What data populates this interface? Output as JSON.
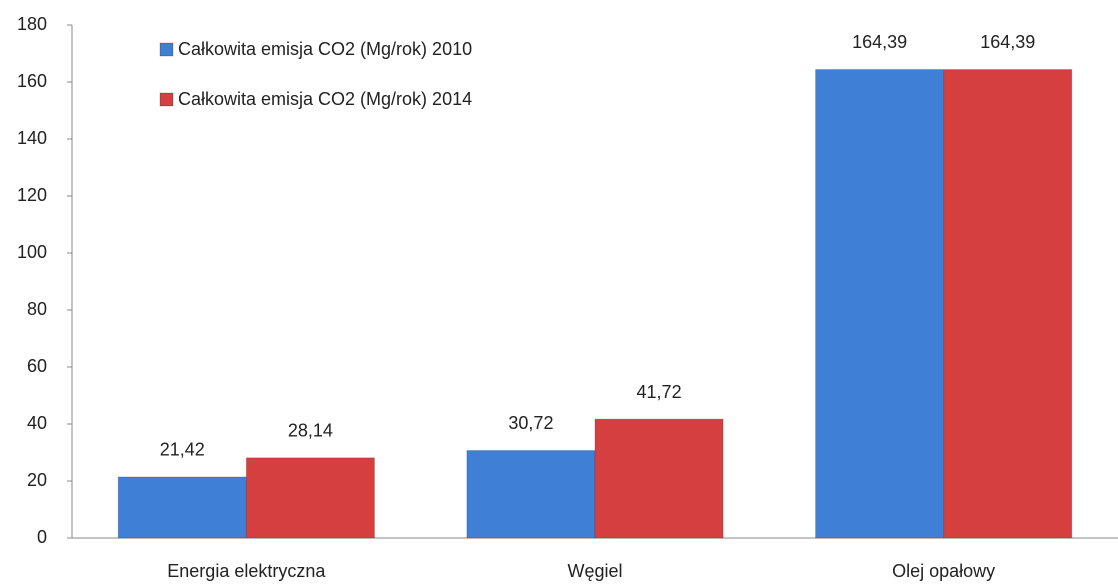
{
  "chart_data": {
    "type": "bar",
    "categories": [
      "Energia elektryczna",
      "Węgiel",
      "Olej opałowy"
    ],
    "series": [
      {
        "name": "Całkowita emisja CO2 (Mg/rok) 2010",
        "color": "#3f7fd6",
        "values": [
          21.42,
          30.72,
          164.39
        ],
        "value_labels": [
          "21,42",
          "30,72",
          "164,39"
        ]
      },
      {
        "name": "Całkowita emisja CO2 (Mg/rok) 2014",
        "color": "#d63f3f",
        "values": [
          28.14,
          41.72,
          164.39
        ],
        "value_labels": [
          "28,14",
          "41,72",
          "164,39"
        ]
      }
    ],
    "ylim": [
      0,
      180
    ],
    "yticks": [
      0,
      20,
      40,
      60,
      80,
      100,
      120,
      140,
      160,
      180
    ],
    "grid": false,
    "legend": "top-left"
  }
}
